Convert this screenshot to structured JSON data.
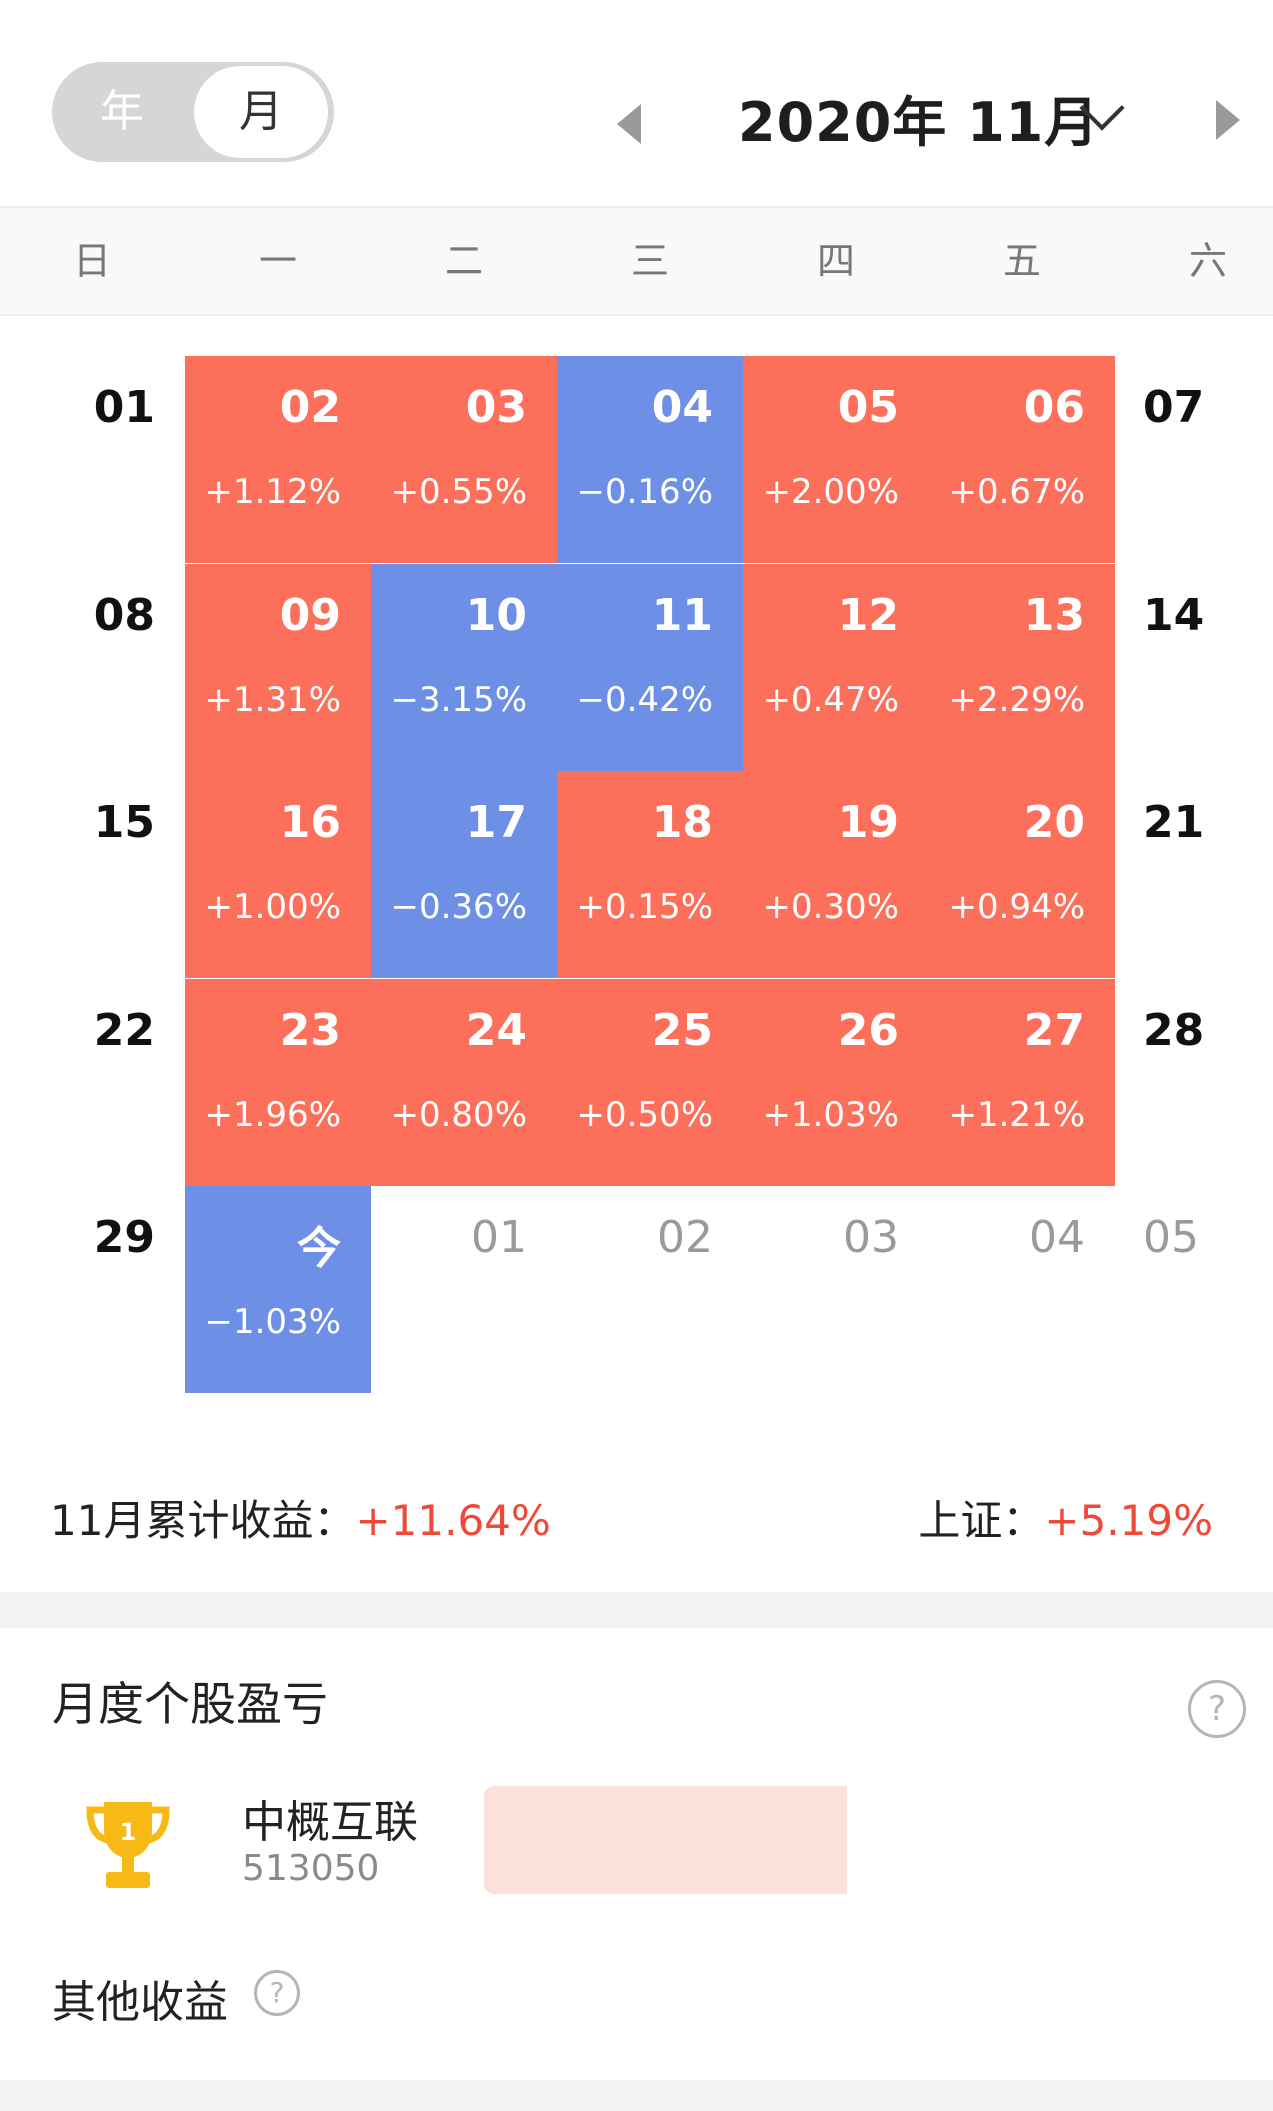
{
  "header": {
    "toggle": {
      "year_label": "年",
      "month_label": "月",
      "selected": "月"
    },
    "title": "2020年 11月"
  },
  "weekdays": [
    "日",
    "一",
    "二",
    "三",
    "四",
    "五",
    "六"
  ],
  "calendar": {
    "colors": {
      "up": "#fb6f5b",
      "down": "#6d90e6"
    },
    "weeks": [
      [
        {
          "day": "01",
          "type": "edge"
        },
        {
          "day": "02",
          "pct": "+1.12%",
          "type": "up"
        },
        {
          "day": "03",
          "pct": "+0.55%",
          "type": "up"
        },
        {
          "day": "04",
          "pct": "−0.16%",
          "type": "down"
        },
        {
          "day": "05",
          "pct": "+2.00%",
          "type": "up"
        },
        {
          "day": "06",
          "pct": "+0.67%",
          "type": "up"
        },
        {
          "day": "07",
          "type": "edge"
        }
      ],
      [
        {
          "day": "08",
          "type": "edge"
        },
        {
          "day": "09",
          "pct": "+1.31%",
          "type": "up"
        },
        {
          "day": "10",
          "pct": "−3.15%",
          "type": "down"
        },
        {
          "day": "11",
          "pct": "−0.42%",
          "type": "down"
        },
        {
          "day": "12",
          "pct": "+0.47%",
          "type": "up"
        },
        {
          "day": "13",
          "pct": "+2.29%",
          "type": "up"
        },
        {
          "day": "14",
          "type": "edge"
        }
      ],
      [
        {
          "day": "15",
          "type": "edge"
        },
        {
          "day": "16",
          "pct": "+1.00%",
          "type": "up"
        },
        {
          "day": "17",
          "pct": "−0.36%",
          "type": "down"
        },
        {
          "day": "18",
          "pct": "+0.15%",
          "type": "up"
        },
        {
          "day": "19",
          "pct": "+0.30%",
          "type": "up"
        },
        {
          "day": "20",
          "pct": "+0.94%",
          "type": "up"
        },
        {
          "day": "21",
          "type": "edge"
        }
      ],
      [
        {
          "day": "22",
          "type": "edge"
        },
        {
          "day": "23",
          "pct": "+1.96%",
          "type": "up"
        },
        {
          "day": "24",
          "pct": "+0.80%",
          "type": "up"
        },
        {
          "day": "25",
          "pct": "+0.50%",
          "type": "up"
        },
        {
          "day": "26",
          "pct": "+1.03%",
          "type": "up"
        },
        {
          "day": "27",
          "pct": "+1.21%",
          "type": "up"
        },
        {
          "day": "28",
          "type": "edge"
        }
      ],
      [
        {
          "day": "29",
          "type": "edge"
        },
        {
          "day": "今",
          "pct": "−1.03%",
          "type": "down"
        },
        {
          "day": "01",
          "type": "future"
        },
        {
          "day": "02",
          "type": "future"
        },
        {
          "day": "03",
          "type": "future"
        },
        {
          "day": "04",
          "type": "future"
        },
        {
          "day": "05",
          "type": "future"
        }
      ]
    ]
  },
  "summary": {
    "month_label": "11月累计收益：",
    "month_value": "+11.64%",
    "index_label": "上证：",
    "index_value": "+5.19%",
    "value_color": "#f0493a"
  },
  "stock_section": {
    "title": "月度个股盈亏",
    "help_icon": "question-circle-icon",
    "help_glyph": "?",
    "items": [
      {
        "rank": "1",
        "icon": "trophy-icon",
        "name": "中概互联",
        "code": "513050",
        "bar_fraction": 0.49,
        "bar_color": "#fce0dc"
      }
    ]
  },
  "other": {
    "title": "其他收益",
    "help_icon": "question-circle-icon",
    "help_glyph": "?"
  }
}
